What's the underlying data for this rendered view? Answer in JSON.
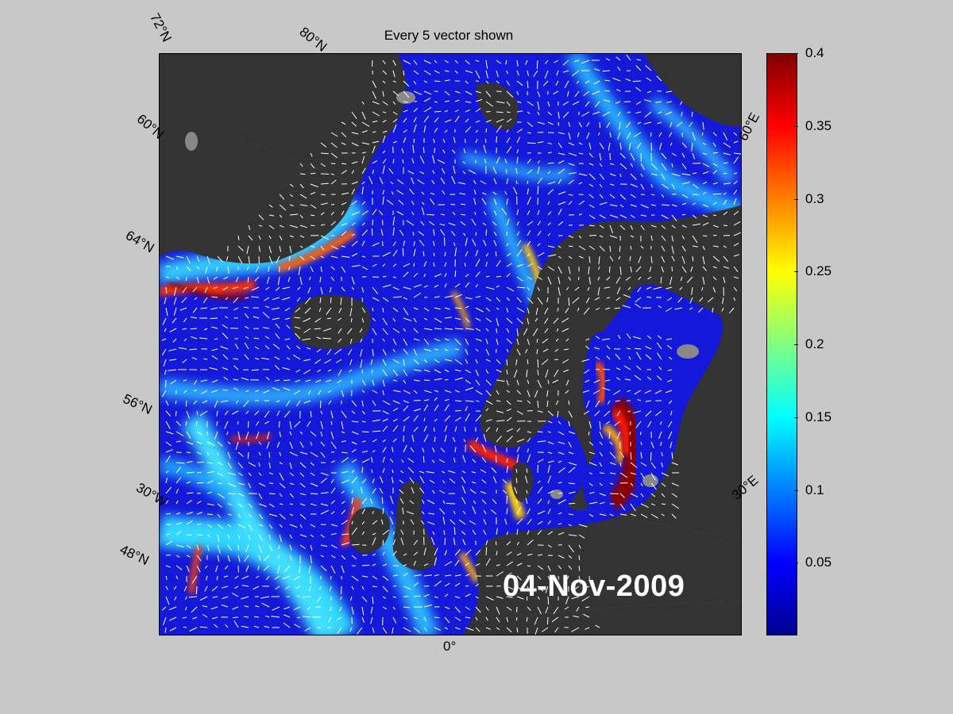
{
  "title": "Every 5 vector shown",
  "date": "04-Nov-2009",
  "lat_labels": [
    "72°N",
    "80°N",
    "60°N",
    "64°N",
    "56°N",
    "30°W",
    "48°N"
  ],
  "lon_labels": [
    "0°",
    "60°E",
    "30°E"
  ],
  "colorbar": {
    "ticks": [
      "0.4",
      "0.35",
      "0.3",
      "0.25",
      "0.2",
      "0.15",
      "0.1",
      "0.05"
    ],
    "min": 0,
    "max": 0.4,
    "colormap": "jet"
  },
  "colors": {
    "background": "#c8c8c8",
    "land": "#333333",
    "ice": "#888888",
    "arrows": "#ffffff"
  }
}
